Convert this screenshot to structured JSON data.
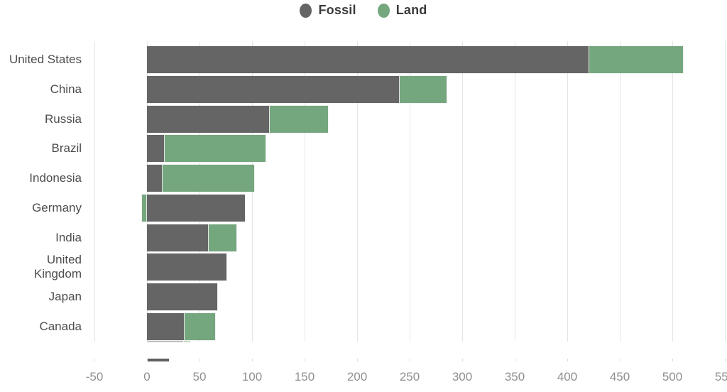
{
  "legend": [
    {
      "label": "Fossil",
      "color": "#656565"
    },
    {
      "label": "Land",
      "color": "#74a77e"
    }
  ],
  "chart_data": {
    "type": "bar",
    "orientation": "horizontal",
    "stacked": true,
    "title": "",
    "xlabel": "",
    "ylabel": "",
    "categories": [
      "United States",
      "China",
      "Russia",
      "Brazil",
      "Indonesia",
      "Germany",
      "India",
      "United Kingdom",
      "Japan",
      "Canada"
    ],
    "series": [
      {
        "name": "Fossil",
        "color": "#656565",
        "values": [
          420,
          240,
          116,
          16,
          14,
          93,
          58,
          76,
          67,
          35
        ]
      },
      {
        "name": "Land",
        "color": "#74a77e",
        "values": [
          90,
          45,
          56,
          97,
          88,
          -5,
          27,
          0,
          0,
          30
        ]
      }
    ],
    "xlim": [
      -50,
      550
    ],
    "xticks": [
      -50,
      0,
      50,
      100,
      150,
      200,
      250,
      300,
      350,
      400,
      450,
      500,
      550
    ],
    "grid": true,
    "legend_position": "top-center"
  }
}
